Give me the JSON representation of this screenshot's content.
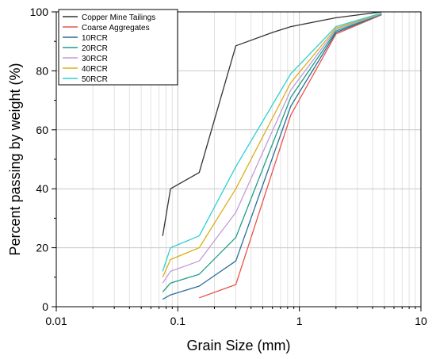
{
  "chart_data": {
    "type": "line",
    "xlabel": "Grain Size (mm)",
    "ylabel": "Percent passing by weight (%)",
    "xscale": "log",
    "xlim": [
      0.01,
      10
    ],
    "ylim": [
      0,
      100
    ],
    "xticks": [
      {
        "value": 0.01,
        "label": "0.01"
      },
      {
        "value": 0.1,
        "label": "0.1"
      },
      {
        "value": 1,
        "label": "1"
      },
      {
        "value": 10,
        "label": "10"
      }
    ],
    "yticks": [
      {
        "value": 0,
        "label": "0"
      },
      {
        "value": 20,
        "label": "20"
      },
      {
        "value": 40,
        "label": "40"
      },
      {
        "value": 60,
        "label": "60"
      },
      {
        "value": 80,
        "label": "80"
      },
      {
        "value": 100,
        "label": "100"
      }
    ],
    "grid": true,
    "legend_position": "top-left",
    "series": [
      {
        "name": "Copper Mine Tailings",
        "color": "#333333",
        "x": [
          0.075,
          0.087,
          0.15,
          0.3,
          0.6,
          0.85,
          2,
          4.75
        ],
        "y": [
          24,
          40,
          45.5,
          88.5,
          93,
          95,
          98,
          100
        ]
      },
      {
        "name": "Coarse Aggregates",
        "color": "#e8534a",
        "x": [
          0.15,
          0.3,
          0.85,
          2,
          4.75
        ],
        "y": [
          3,
          7.5,
          65,
          92.5,
          99
        ]
      },
      {
        "name": "10RCR",
        "color": "#2a6e99",
        "x": [
          0.075,
          0.087,
          0.15,
          0.3,
          0.85,
          2,
          4.75
        ],
        "y": [
          2.5,
          4,
          7,
          15.5,
          68,
          93,
          99.2
        ]
      },
      {
        "name": "20RCR",
        "color": "#1e9e88",
        "x": [
          0.075,
          0.087,
          0.15,
          0.3,
          0.85,
          2,
          4.75
        ],
        "y": [
          5,
          8,
          11,
          23.5,
          71,
          93.5,
          99.3
        ]
      },
      {
        "name": "30RCR",
        "color": "#c59ad8",
        "x": [
          0.075,
          0.087,
          0.15,
          0.3,
          0.85,
          2,
          4.75
        ],
        "y": [
          8,
          12,
          15.5,
          32,
          73.5,
          94,
          99.4
        ]
      },
      {
        "name": "40RCR",
        "color": "#ddad1a",
        "x": [
          0.075,
          0.087,
          0.15,
          0.3,
          0.85,
          2,
          4.75
        ],
        "y": [
          10,
          16,
          20,
          40,
          76,
          94.5,
          99.5
        ]
      },
      {
        "name": "50RCR",
        "color": "#2ccfd1",
        "x": [
          0.075,
          0.087,
          0.15,
          0.3,
          0.85,
          2,
          4.75
        ],
        "y": [
          12,
          20,
          24,
          47.5,
          79,
          95,
          99.6
        ]
      }
    ]
  }
}
